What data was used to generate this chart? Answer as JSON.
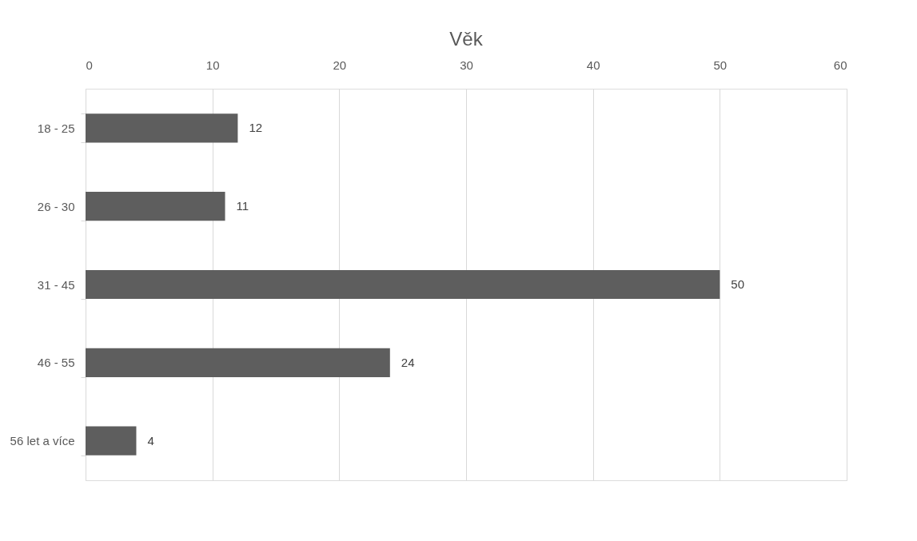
{
  "chart_data": {
    "type": "bar",
    "orientation": "horizontal",
    "title": "Věk",
    "categories": [
      "18 - 25",
      "26 - 30",
      "31 - 45",
      "46 - 55",
      "56 let a více"
    ],
    "values": [
      12,
      11,
      50,
      24,
      4
    ],
    "color": "#5e5e5e",
    "xlim": [
      0,
      60
    ],
    "xticks": [
      0,
      10,
      20,
      30,
      40,
      50,
      60
    ],
    "grid": "x",
    "data_labels": true
  }
}
